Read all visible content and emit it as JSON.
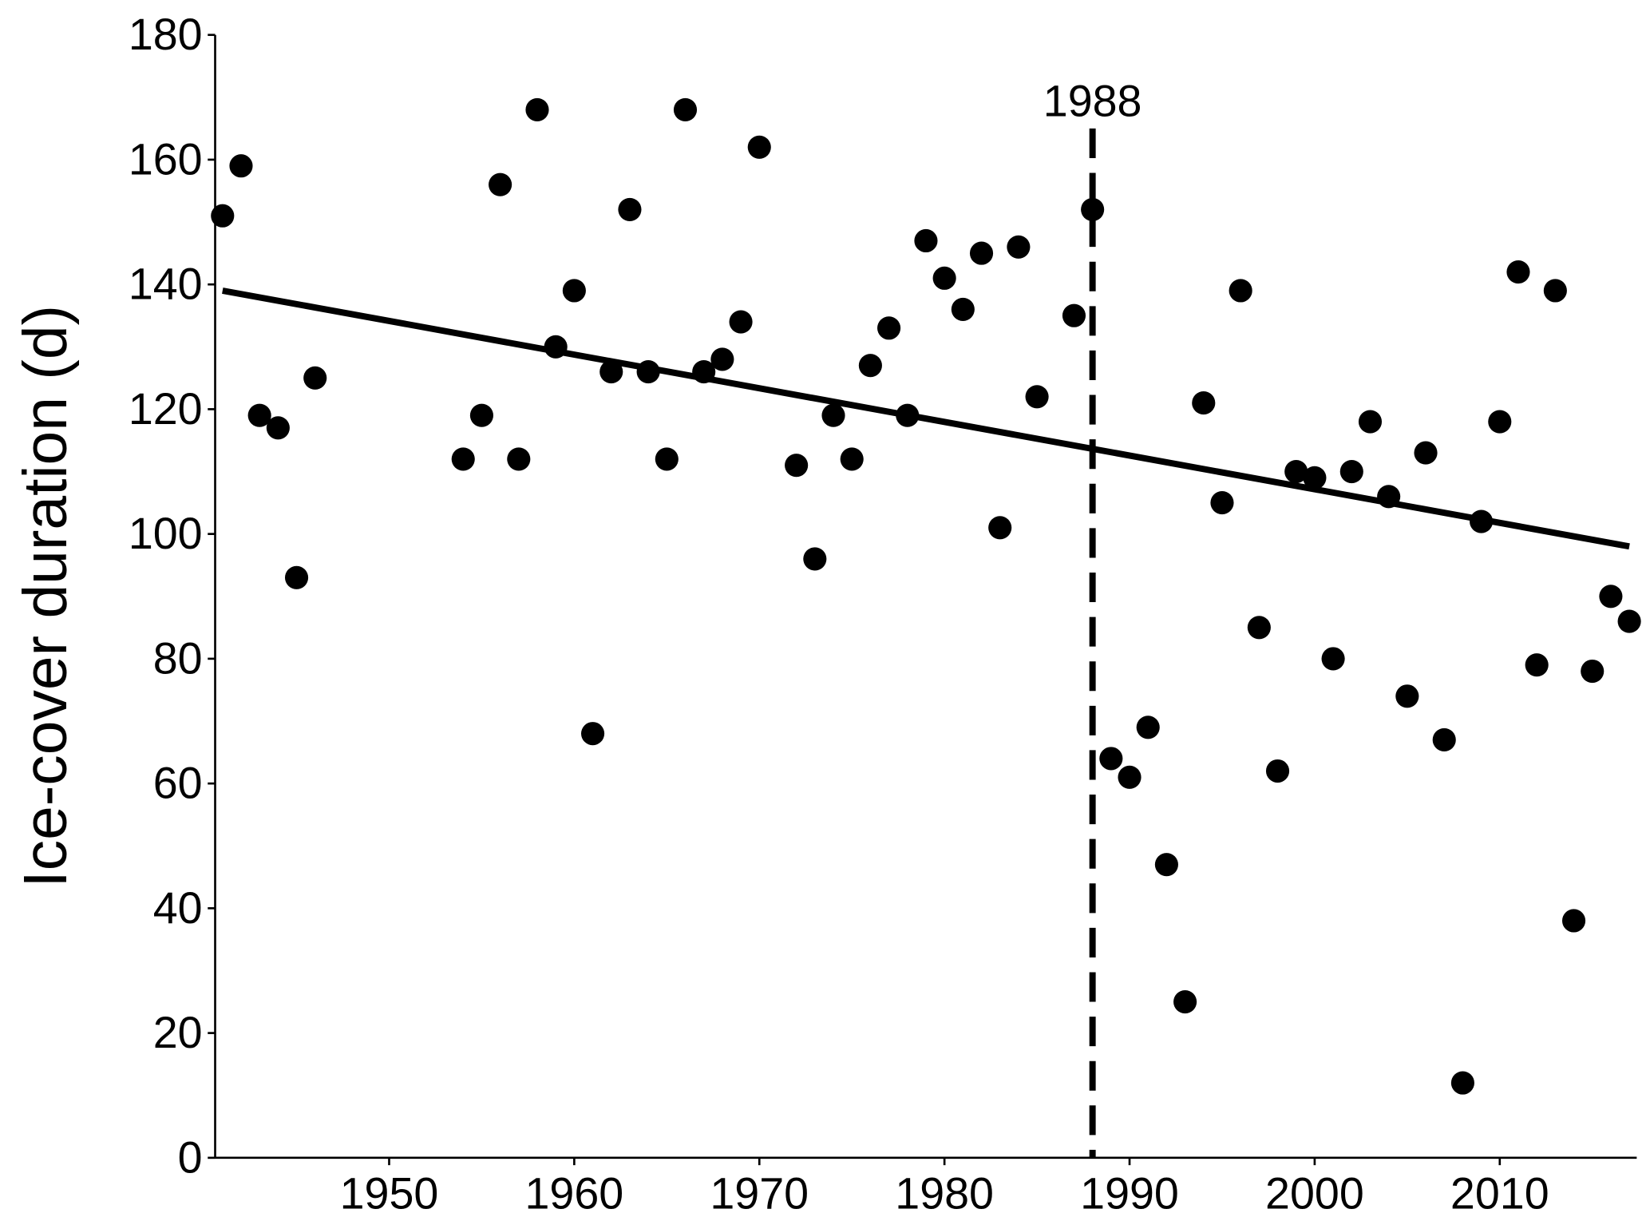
{
  "chart_data": {
    "type": "scatter",
    "title": "",
    "xlabel": "",
    "ylabel": "Ice-cover duration (d)",
    "xlim": [
      1940.6,
      2017.4
    ],
    "ylim": [
      0,
      180
    ],
    "x_ticks": [
      1950,
      1960,
      1970,
      1980,
      1990,
      2000,
      2010
    ],
    "y_ticks": [
      0,
      20,
      40,
      60,
      80,
      100,
      120,
      140,
      160,
      180
    ],
    "grid": false,
    "point_color": "#000000",
    "x": [
      1941,
      1942,
      1943,
      1944,
      1945,
      1946,
      1954,
      1955,
      1956,
      1957,
      1958,
      1959,
      1960,
      1961,
      1962,
      1963,
      1964,
      1965,
      1966,
      1967,
      1968,
      1969,
      1970,
      1972,
      1973,
      1974,
      1975,
      1976,
      1977,
      1978,
      1979,
      1980,
      1981,
      1982,
      1983,
      1984,
      1985,
      1987,
      1988,
      1989,
      1990,
      1991,
      1992,
      1993,
      1994,
      1995,
      1996,
      1997,
      1998,
      1999,
      2000,
      2001,
      2002,
      2003,
      2004,
      2005,
      2006,
      2007,
      2008,
      2009,
      2010,
      2011,
      2012,
      2013,
      2014,
      2015,
      2016,
      2017
    ],
    "y": [
      151,
      159,
      119,
      117,
      93,
      125,
      112,
      119,
      156,
      112,
      168,
      130,
      139,
      68,
      126,
      152,
      126,
      112,
      168,
      126,
      128,
      134,
      162,
      111,
      96,
      119,
      112,
      127,
      133,
      119,
      147,
      141,
      136,
      145,
      101,
      146,
      122,
      135,
      152,
      64,
      61,
      69,
      47,
      25,
      121,
      105,
      139,
      85,
      62,
      110,
      109,
      80,
      110,
      118,
      106,
      74,
      113,
      67,
      12,
      102,
      118,
      142,
      79,
      139,
      38,
      78,
      90,
      86
    ],
    "trend_line": {
      "x": [
        1941,
        2017
      ],
      "y": [
        139,
        98
      ],
      "color": "#000000"
    },
    "vline": {
      "x": 1988,
      "label": "1988",
      "style": "dashed"
    }
  }
}
